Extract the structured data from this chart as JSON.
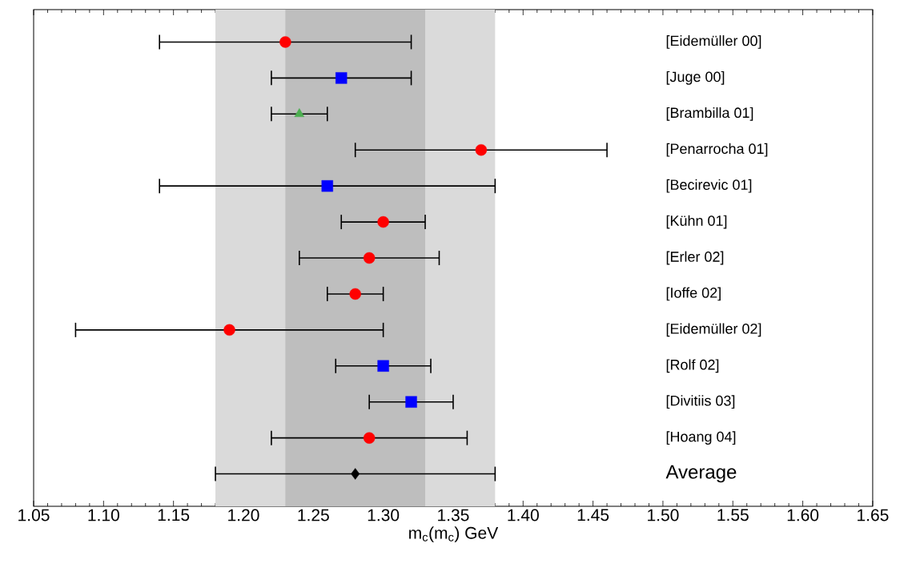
{
  "chart_data": {
    "type": "scatter",
    "orientation": "horizontal",
    "xlabel": "m$_{c}$(m$_{c}$) GeV",
    "categories": [
      "[Eidemüller 00]",
      "[Juge 00]",
      "[Brambilla 01]",
      "[Penarrocha 01]",
      "[Becirevic 01]",
      "[Kühn 01]",
      "[Erler 02]",
      "[Ioffe 02]",
      "[Eidemüller 02]",
      "[Rolf 02]",
      "[Divitiis 03]",
      "[Hoang 04]",
      "Average"
    ],
    "series": [
      {
        "color": "#ff0000",
        "marker": "circle",
        "values": [
          1.23,
          null,
          null,
          1.37,
          null,
          1.3,
          1.29,
          1.28,
          1.19,
          null,
          null,
          1.29,
          null
        ],
        "errors": [
          0.09,
          null,
          null,
          0.09,
          null,
          0.03,
          0.05,
          0.02,
          0.11,
          null,
          null,
          0.07,
          null
        ]
      },
      {
        "color": "#0000ff",
        "marker": "square",
        "values": [
          null,
          1.27,
          null,
          null,
          1.26,
          null,
          null,
          null,
          null,
          1.3,
          1.32,
          null,
          null
        ],
        "errors": [
          null,
          0.05,
          null,
          null,
          0.12,
          null,
          null,
          null,
          null,
          0.034,
          0.03,
          null,
          null
        ]
      },
      {
        "color": "#4caf50",
        "marker": "triangle",
        "values": [
          null,
          null,
          1.24,
          null,
          null,
          null,
          null,
          null,
          null,
          null,
          null,
          null,
          null
        ],
        "errors": [
          null,
          null,
          0.02,
          null,
          null,
          null,
          null,
          null,
          null,
          null,
          null,
          null,
          null
        ]
      },
      {
        "color": "#000000",
        "marker": "diamond",
        "values": [
          null,
          null,
          null,
          null,
          null,
          null,
          null,
          null,
          null,
          null,
          null,
          null,
          1.28
        ],
        "errors": [
          null,
          null,
          null,
          null,
          null,
          null,
          null,
          null,
          null,
          null,
          null,
          null,
          0.1
        ]
      }
    ],
    "bands": [
      {
        "axis": "x",
        "from": 1.18,
        "to": 1.38,
        "color": "#dadada"
      },
      {
        "axis": "x",
        "from": 1.23,
        "to": 1.33,
        "color": "#bebebe"
      }
    ],
    "xlim": [
      1.05,
      1.65
    ],
    "xticks": [
      {
        "value": 1.05,
        "label": "1.05"
      },
      {
        "value": 1.1,
        "label": "1.10"
      },
      {
        "value": 1.15,
        "label": "1.15"
      },
      {
        "value": 1.2,
        "label": "1.20"
      },
      {
        "value": 1.25,
        "label": "1.25"
      },
      {
        "value": 1.3,
        "label": "1.30"
      },
      {
        "value": 1.35,
        "label": "1.35"
      },
      {
        "value": 1.4,
        "label": "1.40"
      },
      {
        "value": 1.45,
        "label": "1.45"
      },
      {
        "value": 1.5,
        "label": "1.50"
      },
      {
        "value": 1.55,
        "label": "1.55"
      },
      {
        "value": 1.6,
        "label": "1.60"
      },
      {
        "value": 1.65,
        "label": "1.65"
      }
    ]
  }
}
